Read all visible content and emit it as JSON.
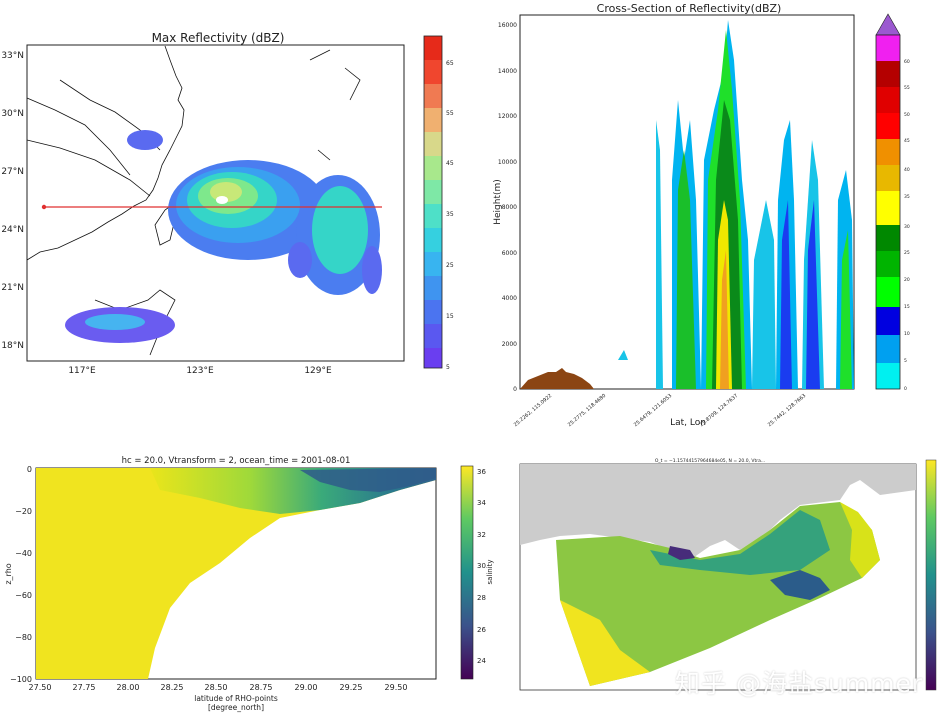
{
  "chart_data": [
    {
      "type": "heatmap",
      "title": "Max Reflectivity (dBZ)",
      "yticks": [
        "33°N",
        "30°N",
        "27°N",
        "24°N",
        "21°N",
        "18°N"
      ],
      "xticks": [
        "117°E",
        "123°E",
        "129°E"
      ],
      "cbar_ticks": [
        "65",
        "55",
        "45",
        "35",
        "25",
        "15",
        "5"
      ],
      "cbar_range": [
        0,
        70
      ],
      "cross_section_line": {
        "lon": [
          115.5,
          132.5
        ],
        "lat": [
          25.2,
          25.2
        ]
      },
      "colors": {
        "line": "#e03030",
        "land": "#000000"
      }
    },
    {
      "type": "area",
      "title": "Cross-Section of Reflectivity(dBZ)",
      "ylabel": "Height(m)",
      "xlabel": "Lat, Lon",
      "yticks": [
        "0",
        "2000",
        "4000",
        "6000",
        "8000",
        "10000",
        "12000",
        "14000",
        "16000"
      ],
      "ylim": [
        0,
        16500
      ],
      "xticks": [
        "25.2262, 115.0922",
        "25.2775, 118.4680",
        "25.6479, 121.6053",
        "25.8709, 124.7637",
        "25.7442, 128.7663"
      ],
      "cbar_ticks": [
        "60",
        "55",
        "50",
        "45",
        "40",
        "35",
        "30",
        "25",
        "20",
        "15",
        "10",
        "5",
        "0"
      ],
      "cbar_range": [
        0,
        65
      ],
      "colors": {
        "terrain": "#8b4513"
      }
    },
    {
      "type": "heatmap",
      "title": "hc = 20.0, Vtransform = 2, ocean_time = 2001-08-01",
      "xlabel": "latitude of RHO-points",
      "xunit": "[degree_north]",
      "ylabel": "z_rho",
      "xticks": [
        "27.50",
        "27.75",
        "28.00",
        "28.25",
        "28.50",
        "28.75",
        "29.00",
        "29.25",
        "29.50"
      ],
      "xlim": [
        27.5,
        29.7
      ],
      "yticks": [
        "0",
        "−20",
        "−40",
        "−60",
        "−80",
        "−100"
      ],
      "ylim": [
        -100,
        0
      ],
      "cbar_label": "salinity",
      "cbar_ticks": [
        "36",
        "34",
        "32",
        "30",
        "28",
        "26",
        "24"
      ],
      "cbar_range": [
        23,
        36.5
      ]
    },
    {
      "type": "heatmap",
      "title": "O_t = −1.15744157964684e05, N = 20.0, Vtra..."
    }
  ],
  "watermark": "知乎 @海盐summer"
}
